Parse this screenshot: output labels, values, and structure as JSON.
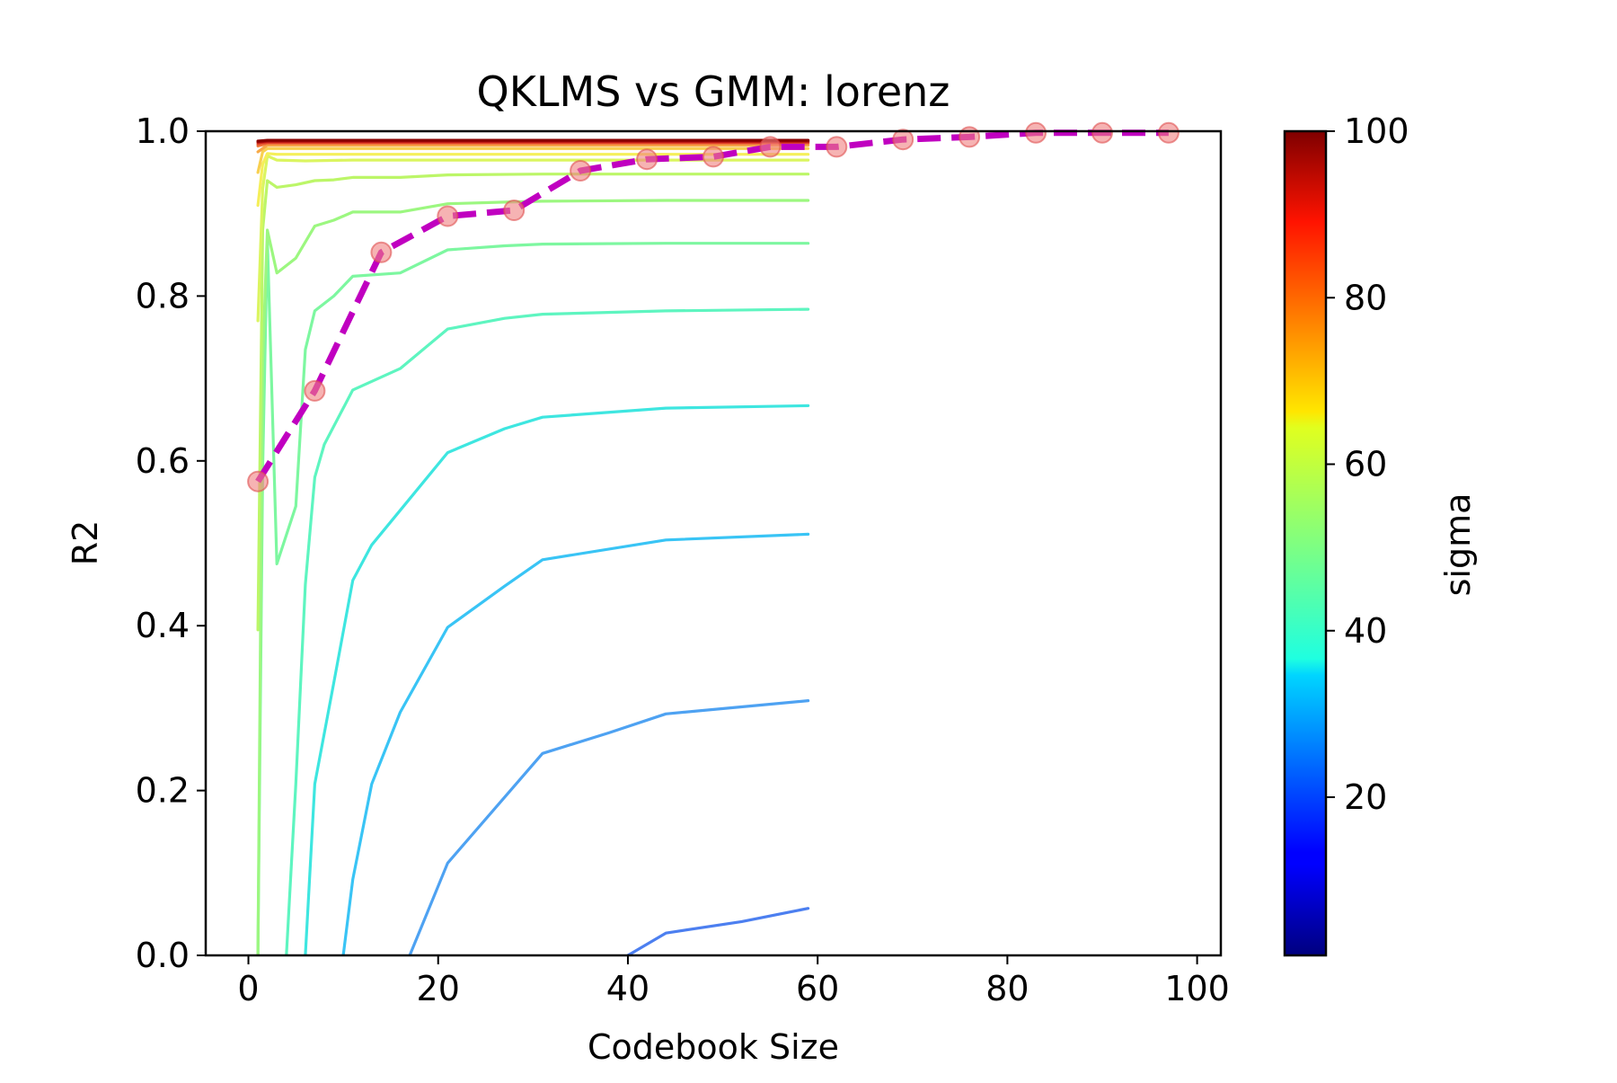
{
  "chart_data": {
    "type": "line",
    "title": "QKLMS vs GMM: lorenz",
    "xlabel": "Codebook Size",
    "ylabel": "R2",
    "xlim": [
      -4.5,
      102.5
    ],
    "ylim": [
      0,
      1
    ],
    "xticks": [
      0,
      20,
      40,
      60,
      80,
      100
    ],
    "xtick_labels": [
      "0",
      "20",
      "40",
      "60",
      "80",
      "100"
    ],
    "yticks": [
      0.0,
      0.2,
      0.4,
      0.6,
      0.8,
      1.0
    ],
    "ytick_labels": [
      "0.0",
      "0.2",
      "0.4",
      "0.6",
      "0.8",
      "1.0"
    ],
    "colorbar": {
      "label": "sigma",
      "colormap": "jet",
      "range": [
        1,
        100
      ],
      "ticks": [
        20,
        40,
        60,
        80,
        100
      ],
      "tick_labels": [
        "20",
        "40",
        "60",
        "80",
        "100"
      ]
    },
    "series": [
      {
        "name": "sigma 21",
        "sigma": 21,
        "color": "#4c7ff0",
        "x": [
          40,
          44,
          52,
          59
        ],
        "y": [
          0.0,
          0.027,
          0.041,
          0.057
        ]
      },
      {
        "name": "sigma 26",
        "sigma": 26,
        "color": "#4ea2f2",
        "x": [
          17,
          21,
          31,
          38,
          44,
          59
        ],
        "y": [
          0.0,
          0.112,
          0.245,
          0.27,
          0.293,
          0.309
        ]
      },
      {
        "name": "sigma 31",
        "sigma": 31,
        "color": "#39c4f5",
        "x": [
          10,
          11,
          13,
          16,
          21,
          27,
          31,
          44,
          59
        ],
        "y": [
          0.0,
          0.092,
          0.208,
          0.295,
          0.398,
          0.448,
          0.48,
          0.504,
          0.511
        ]
      },
      {
        "name": "sigma 36",
        "sigma": 36,
        "color": "#3ee6e0",
        "x": [
          6,
          7,
          9,
          11,
          13,
          16,
          21,
          27,
          31,
          44,
          59
        ],
        "y": [
          0.0,
          0.208,
          0.331,
          0.455,
          0.498,
          0.54,
          0.61,
          0.639,
          0.653,
          0.664,
          0.667
        ]
      },
      {
        "name": "sigma 41",
        "sigma": 41,
        "color": "#5ef5c0",
        "x": [
          4,
          5,
          6,
          7,
          8,
          11,
          16,
          21,
          27,
          31,
          44,
          59
        ],
        "y": [
          0.0,
          0.208,
          0.45,
          0.58,
          0.62,
          0.686,
          0.712,
          0.76,
          0.773,
          0.778,
          0.782,
          0.784
        ]
      },
      {
        "name": "sigma 46",
        "sigma": 46,
        "color": "#7df7a0",
        "x": [
          1,
          1.5,
          2,
          3,
          5,
          6,
          7,
          9,
          11,
          16,
          21,
          27,
          31,
          44,
          59
        ],
        "y": [
          0.0,
          0.59,
          0.87,
          0.475,
          0.545,
          0.735,
          0.782,
          0.8,
          0.824,
          0.828,
          0.856,
          0.861,
          0.863,
          0.864,
          0.864
        ]
      },
      {
        "name": "sigma 51",
        "sigma": 51,
        "color": "#9cf780",
        "x": [
          1,
          1.5,
          2,
          3,
          5,
          7,
          9,
          11,
          16,
          21,
          27,
          31,
          44,
          59
        ],
        "y": [
          0.0,
          0.72,
          0.88,
          0.828,
          0.846,
          0.885,
          0.892,
          0.902,
          0.902,
          0.912,
          0.914,
          0.915,
          0.916,
          0.916
        ]
      },
      {
        "name": "sigma 56",
        "sigma": 56,
        "color": "#bcf668",
        "x": [
          1,
          1.5,
          2,
          3,
          5,
          7,
          9,
          11,
          16,
          21,
          31,
          44,
          59
        ],
        "y": [
          0.395,
          0.88,
          0.94,
          0.932,
          0.935,
          0.94,
          0.941,
          0.944,
          0.944,
          0.947,
          0.948,
          0.948,
          0.948
        ]
      },
      {
        "name": "sigma 61",
        "sigma": 61,
        "color": "#dbf560",
        "x": [
          1,
          1.5,
          2,
          3,
          6,
          11,
          21,
          31,
          44,
          59
        ],
        "y": [
          0.77,
          0.93,
          0.97,
          0.965,
          0.964,
          0.965,
          0.965,
          0.965,
          0.965,
          0.965
        ]
      },
      {
        "name": "sigma 66",
        "sigma": 66,
        "color": "#f5ef5a",
        "x": [
          1,
          1.5,
          2,
          3,
          6,
          11,
          21,
          31,
          44,
          59
        ],
        "y": [
          0.91,
          0.96,
          0.973,
          0.972,
          0.972,
          0.972,
          0.972,
          0.972,
          0.972,
          0.972
        ]
      },
      {
        "name": "sigma 71",
        "sigma": 71,
        "color": "#f8d050",
        "x": [
          1,
          1.5,
          2,
          3,
          6,
          11,
          21,
          31,
          44,
          59
        ],
        "y": [
          0.95,
          0.975,
          0.979,
          0.979,
          0.979,
          0.979,
          0.979,
          0.979,
          0.979,
          0.979
        ]
      },
      {
        "name": "sigma 76",
        "sigma": 76,
        "color": "#f7aa48",
        "x": [
          1,
          2,
          3,
          11,
          21,
          31,
          44,
          59
        ],
        "y": [
          0.975,
          0.983,
          0.983,
          0.983,
          0.983,
          0.983,
          0.983,
          0.983
        ]
      },
      {
        "name": "sigma 81",
        "sigma": 81,
        "color": "#f28240",
        "x": [
          1,
          2,
          11,
          31,
          59
        ],
        "y": [
          0.982,
          0.985,
          0.985,
          0.985,
          0.985
        ]
      },
      {
        "name": "sigma 86",
        "sigma": 86,
        "color": "#e85a30",
        "x": [
          1,
          2,
          11,
          31,
          59
        ],
        "y": [
          0.984,
          0.986,
          0.986,
          0.986,
          0.986
        ]
      },
      {
        "name": "sigma 91",
        "sigma": 91,
        "color": "#d83020",
        "x": [
          1,
          2,
          11,
          31,
          59
        ],
        "y": [
          0.986,
          0.987,
          0.987,
          0.987,
          0.987
        ]
      },
      {
        "name": "sigma 96",
        "sigma": 96,
        "color": "#b01010",
        "x": [
          1,
          2,
          11,
          31,
          59
        ],
        "y": [
          0.987,
          0.988,
          0.988,
          0.988,
          0.988
        ]
      },
      {
        "name": "sigma 100",
        "sigma": 100,
        "color": "#8a0000",
        "x": [
          1,
          2,
          11,
          31,
          59
        ],
        "y": [
          0.988,
          0.989,
          0.989,
          0.989,
          0.989
        ]
      }
    ],
    "gmm_series": {
      "name": "GMM",
      "color": "#c000c0",
      "marker_color": "#f08080",
      "x": [
        1,
        7,
        14,
        21,
        28,
        35,
        42,
        49,
        55,
        62,
        69,
        76,
        83,
        90,
        97
      ],
      "y": [
        0.575,
        0.685,
        0.853,
        0.897,
        0.904,
        0.952,
        0.966,
        0.969,
        0.981,
        0.981,
        0.99,
        0.993,
        0.998,
        0.998,
        0.998
      ]
    }
  }
}
